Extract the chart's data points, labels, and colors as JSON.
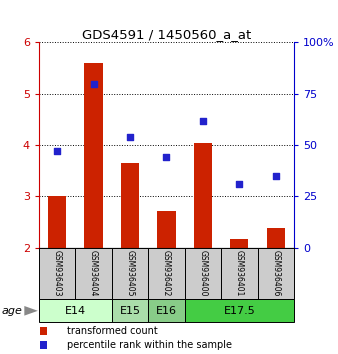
{
  "title": "GDS4591 / 1450560_a_at",
  "samples": [
    "GSM936403",
    "GSM936404",
    "GSM936405",
    "GSM936402",
    "GSM936400",
    "GSM936401",
    "GSM936406"
  ],
  "transformed_counts": [
    3.0,
    5.6,
    3.65,
    2.72,
    4.05,
    2.18,
    2.38
  ],
  "percentile_ranks_pct": [
    47,
    80,
    54,
    44,
    62,
    31,
    35
  ],
  "age_groups": [
    {
      "label": "E14",
      "samples": [
        "GSM936403",
        "GSM936404"
      ],
      "color": "#ccffcc"
    },
    {
      "label": "E15",
      "samples": [
        "GSM936405"
      ],
      "color": "#bbeecc"
    },
    {
      "label": "E16",
      "samples": [
        "GSM936402"
      ],
      "color": "#99dd99"
    },
    {
      "label": "E17.5",
      "samples": [
        "GSM936400",
        "GSM936401",
        "GSM936406"
      ],
      "color": "#55cc55"
    }
  ],
  "ylim_left": [
    2,
    6
  ],
  "ylim_right": [
    0,
    100
  ],
  "yticks_left": [
    2,
    3,
    4,
    5,
    6
  ],
  "yticks_right": [
    0,
    25,
    50,
    75,
    100
  ],
  "bar_color": "#cc2200",
  "dot_color": "#2222cc",
  "bar_width": 0.5,
  "sample_bg": "#cccccc",
  "age_label": "age"
}
